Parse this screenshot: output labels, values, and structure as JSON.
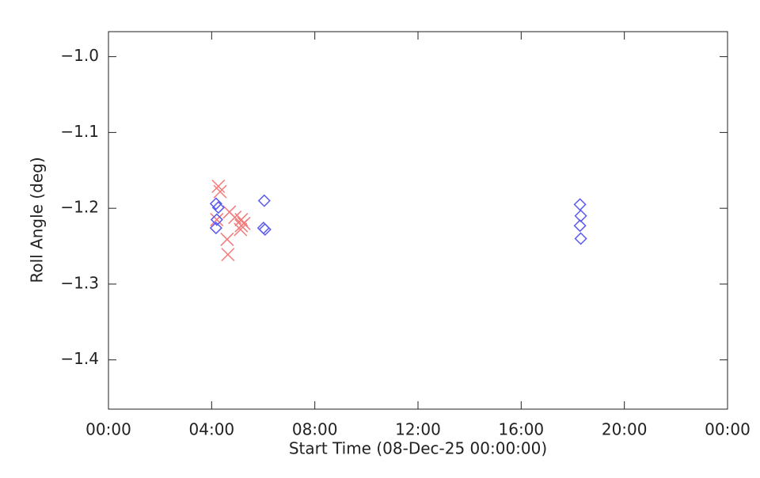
{
  "chart_data": {
    "type": "scatter",
    "x_label": "Start Time (08-Dec-25 00:00:00)",
    "y_label": "Roll Angle (deg)",
    "xlim": [
      0,
      24
    ],
    "xticks": [
      {
        "value": 0,
        "label": "00:00"
      },
      {
        "value": 4,
        "label": "04:00"
      },
      {
        "value": 8,
        "label": "08:00"
      },
      {
        "value": 12,
        "label": "12:00"
      },
      {
        "value": 16,
        "label": "16:00"
      },
      {
        "value": 20,
        "label": "20:00"
      },
      {
        "value": 24,
        "label": "00:00"
      }
    ],
    "ylim": [
      -1.465,
      -0.967
    ],
    "yticks": [
      {
        "value": -1.4,
        "label": "−1.4"
      },
      {
        "value": -1.3,
        "label": "−1.3"
      },
      {
        "value": -1.2,
        "label": "−1.2"
      },
      {
        "value": -1.1,
        "label": "−1.1"
      },
      {
        "value": -1.0,
        "label": "−1.0"
      }
    ],
    "series": [
      {
        "color": "#f47a7a",
        "marker": "x",
        "x": [
          4.2,
          4.26,
          4.33,
          4.69,
          4.6,
          4.63,
          4.9,
          5.15,
          5.12,
          5.15,
          5.25
        ],
        "values": [
          -1.215,
          -1.171,
          -1.178,
          -1.205,
          -1.241,
          -1.261,
          -1.212,
          -1.223,
          -1.228,
          -1.215,
          -1.22
        ]
      },
      {
        "color": "#5a5af0",
        "marker": "diamond",
        "x": [
          4.17,
          4.26,
          4.17,
          4.2,
          6.04,
          6.01,
          6.07,
          18.28,
          18.31,
          18.28,
          18.31
        ],
        "values": [
          -1.194,
          -1.199,
          -1.226,
          -1.215,
          -1.19,
          -1.226,
          -1.228,
          -1.195,
          -1.21,
          -1.223,
          -1.24
        ]
      }
    ]
  }
}
